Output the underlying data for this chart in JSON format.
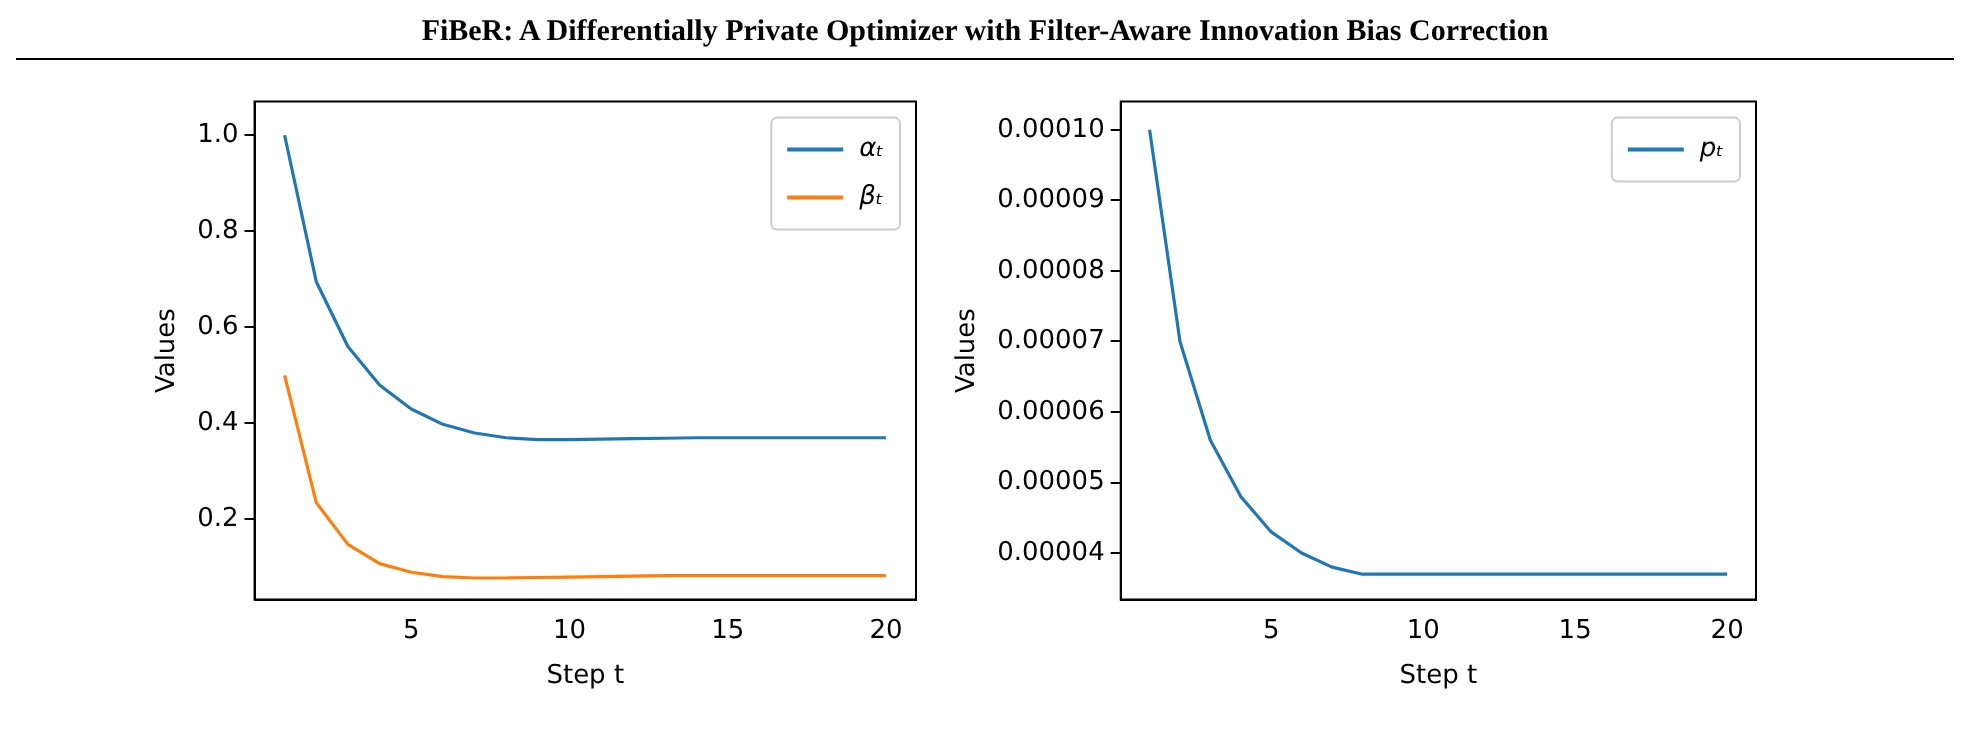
{
  "chart_data": [
    {
      "type": "line",
      "title": "FiBeR: A Differentially Private Optimizer with Filter-Aware Innovation Bias Correction",
      "xlabel": "Step t",
      "ylabel": "Values",
      "x": [
        1,
        2,
        3,
        4,
        5,
        6,
        7,
        8,
        9,
        10,
        11,
        12,
        13,
        14,
        15,
        16,
        17,
        18,
        19,
        20
      ],
      "series": [
        {
          "name": "αₜ",
          "color": "#1f77b4",
          "values": [
            1.0,
            0.695,
            0.56,
            0.48,
            0.43,
            0.398,
            0.38,
            0.37,
            0.366,
            0.366,
            0.367,
            0.368,
            0.369,
            0.37,
            0.37,
            0.37,
            0.37,
            0.37,
            0.37,
            0.37
          ]
        },
        {
          "name": "βₜ",
          "color": "#ff7f0e",
          "values": [
            0.5,
            0.235,
            0.148,
            0.108,
            0.09,
            0.081,
            0.078,
            0.078,
            0.079,
            0.08,
            0.081,
            0.082,
            0.083,
            0.083,
            0.083,
            0.083,
            0.083,
            0.083,
            0.083,
            0.083
          ]
        }
      ],
      "xlim": [
        0.05,
        20.95
      ],
      "xticks": [
        5,
        10,
        15,
        20
      ],
      "ylim": [
        0.033,
        1.07
      ],
      "yticks": [
        {
          "value": 0.2,
          "label": "0.2"
        },
        {
          "value": 0.4,
          "label": "0.4"
        },
        {
          "value": 0.6,
          "label": "0.6"
        },
        {
          "value": 0.8,
          "label": "0.8"
        },
        {
          "value": 1.0,
          "label": "1.0"
        }
      ],
      "legend": "top right",
      "grid": false,
      "marker": "none",
      "line_style": "solid"
    },
    {
      "type": "line",
      "xlabel": "Step t",
      "ylabel": "Values",
      "x": [
        1,
        2,
        3,
        4,
        5,
        6,
        7,
        8,
        9,
        10,
        11,
        12,
        13,
        14,
        15,
        16,
        17,
        18,
        19,
        20
      ],
      "series": [
        {
          "name": "pₜ",
          "color": "#1f77b4",
          "values": [
            0.0001,
            7e-05,
            5.6e-05,
            4.8e-05,
            4.3e-05,
            4e-05,
            3.8e-05,
            3.7e-05,
            3.7e-05,
            3.7e-05,
            3.7e-05,
            3.7e-05,
            3.7e-05,
            3.7e-05,
            3.7e-05,
            3.7e-05,
            3.7e-05,
            3.7e-05,
            3.7e-05,
            3.7e-05
          ]
        }
      ],
      "xlim": [
        0.05,
        20.95
      ],
      "xticks": [
        5,
        10,
        15,
        20
      ],
      "ylim": [
        3.34e-05,
        0.000104
      ],
      "yticks": [
        {
          "value": 4e-05,
          "label": "0.00004"
        },
        {
          "value": 5e-05,
          "label": "0.00005"
        },
        {
          "value": 6e-05,
          "label": "0.00006"
        },
        {
          "value": 7e-05,
          "label": "0.00007"
        },
        {
          "value": 8e-05,
          "label": "0.00008"
        },
        {
          "value": 9e-05,
          "label": "0.00009"
        },
        {
          "value": 0.0001,
          "label": "0.00010"
        }
      ],
      "legend": "top right",
      "grid": false,
      "marker": "none",
      "line_style": "solid"
    }
  ]
}
